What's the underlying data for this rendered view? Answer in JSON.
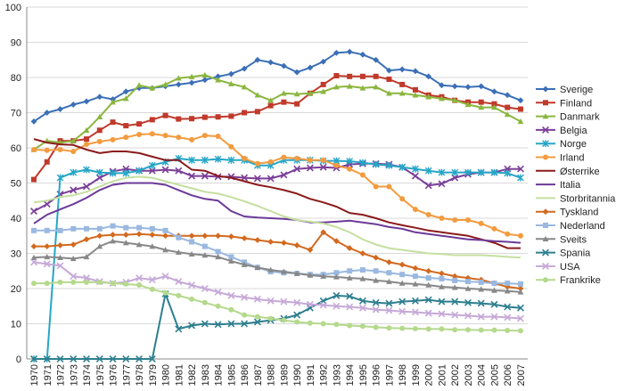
{
  "chart_data": {
    "type": "line",
    "x": [
      "1970",
      "1971",
      "1972",
      "1973",
      "1974",
      "1975",
      "1976",
      "1977",
      "1978",
      "1979",
      "1980",
      "1981",
      "1982",
      "1983",
      "1984",
      "1985",
      "1986",
      "1987",
      "1988",
      "1989",
      "1990",
      "1991",
      "1992",
      "1993",
      "1994",
      "1995",
      "1996",
      "1997",
      "1998",
      "1999",
      "2000",
      "2001",
      "2002",
      "2003",
      "2004",
      "2005",
      "2006",
      "2007"
    ],
    "ylim": [
      0,
      100
    ],
    "yticks": [
      "0",
      "10",
      "20",
      "30",
      "40",
      "50",
      "60",
      "70",
      "80",
      "90",
      "100"
    ],
    "grid": true,
    "legend_position": "right",
    "series": [
      {
        "name": "Sverige",
        "color": "#3b6fb6",
        "marker": "diamond",
        "values": [
          67.5,
          70,
          71,
          72.3,
          73.2,
          74.5,
          73.8,
          76,
          77,
          77,
          77.5,
          78,
          78.5,
          79.3,
          80.3,
          81,
          82.5,
          85,
          84.3,
          83.3,
          81.5,
          82.8,
          84.5,
          87,
          87.3,
          86.5,
          85,
          82,
          82.3,
          81.8,
          80.3,
          77.8,
          77.5,
          77.3,
          77.5,
          76,
          75,
          73.5
        ]
      },
      {
        "name": "Finland",
        "color": "#c0392b",
        "marker": "square",
        "values": [
          51,
          56,
          62,
          62,
          62.5,
          65,
          67.3,
          66.3,
          66.8,
          68,
          69.2,
          68.2,
          68.3,
          68.7,
          68.8,
          69,
          70,
          70.3,
          72,
          73,
          72.5,
          75.5,
          78,
          80.5,
          80.3,
          80.3,
          80.3,
          79.5,
          78,
          76.5,
          75,
          74.5,
          73.5,
          73,
          73,
          72.5,
          71.5,
          71
        ]
      },
      {
        "name": "Danmark",
        "color": "#8ab63e",
        "marker": "triangle",
        "values": [
          59.5,
          62,
          61.5,
          62,
          65,
          68.8,
          73,
          74,
          77.8,
          77,
          78,
          79.8,
          80.2,
          80.7,
          79.3,
          78.2,
          77.3,
          75,
          73.5,
          75.5,
          75.3,
          75.5,
          76,
          77.3,
          77.5,
          77,
          77.3,
          75.5,
          75.5,
          75,
          74.5,
          74,
          73.5,
          72.3,
          71.5,
          71.5,
          69.5,
          67.5
        ]
      },
      {
        "name": "Belgia",
        "color": "#7b3f98",
        "marker": "x",
        "values": [
          42,
          44,
          46.8,
          48,
          49,
          51.5,
          53.3,
          54,
          53.5,
          53.5,
          53.8,
          53.5,
          52,
          52,
          51.8,
          51.8,
          51.5,
          51.3,
          51.3,
          52.3,
          54,
          54.3,
          54.5,
          54.3,
          55.3,
          55.5,
          55.5,
          55.3,
          54.5,
          52,
          49.3,
          49.8,
          51.5,
          52.5,
          53,
          53,
          54,
          54
        ]
      },
      {
        "name": "Norge",
        "color": "#26a6c7",
        "marker": "star",
        "values": [
          0,
          0,
          51.5,
          53,
          53.8,
          53,
          52.8,
          52.8,
          53.5,
          55,
          56,
          57,
          56.5,
          56.5,
          56.8,
          56.5,
          56.5,
          55,
          55,
          56.5,
          56.5,
          56.5,
          56.3,
          56.3,
          56.2,
          55.8,
          55.3,
          55,
          54.5,
          54,
          53.5,
          53,
          53,
          53,
          53,
          53,
          52.8,
          51.5
        ]
      },
      {
        "name": "Irland",
        "color": "#f39b3f",
        "marker": "circle",
        "values": [
          59.5,
          59.3,
          59.5,
          59,
          61,
          61.8,
          62.3,
          63,
          63.8,
          64,
          63.5,
          63,
          62.3,
          63.5,
          63.3,
          60.3,
          57,
          55.5,
          56,
          57.3,
          57,
          56.5,
          56.5,
          55,
          54,
          52.3,
          49,
          49,
          45.5,
          42.5,
          41,
          40,
          39.5,
          39.5,
          38.5,
          37,
          35.5,
          35
        ]
      },
      {
        "name": "Østerrike",
        "color": "#8b1a1a",
        "marker": "none",
        "values": [
          62.5,
          61.5,
          61,
          60.8,
          59.5,
          58.5,
          59,
          59,
          58.5,
          57.5,
          56.5,
          56.5,
          53.8,
          53.5,
          52,
          51.5,
          50.5,
          49.5,
          48.8,
          48,
          47,
          45.5,
          44.5,
          43.3,
          41.5,
          41,
          40,
          38.8,
          38,
          37.3,
          36.5,
          36,
          35.5,
          35,
          34,
          33,
          31.5,
          31.5
        ]
      },
      {
        "name": "Italia",
        "color": "#6b3a98",
        "marker": "none",
        "values": [
          38.5,
          41,
          42.5,
          44,
          45.8,
          48,
          49.5,
          50,
          50,
          50,
          49.5,
          48,
          46.5,
          45.5,
          45,
          42,
          40.5,
          40.2,
          40,
          39.8,
          39.5,
          38.8,
          38.8,
          39,
          39.3,
          38.8,
          38.3,
          37.5,
          37,
          36,
          35.5,
          35,
          34.5,
          34,
          33.8,
          33.5,
          33.3,
          33
        ]
      },
      {
        "name": "Storbritannia",
        "color": "#c5dfa0",
        "marker": "none",
        "values": [
          44.5,
          45,
          46,
          46.5,
          47.5,
          49,
          50.5,
          51.5,
          51.8,
          51.5,
          50.5,
          49.5,
          48.5,
          47.5,
          47,
          46,
          44.8,
          43.5,
          42,
          40.5,
          39.5,
          39,
          38.5,
          37.5,
          36,
          34,
          32.5,
          31.5,
          31,
          30.5,
          30,
          29.8,
          29.5,
          29.5,
          29.5,
          29.3,
          29,
          28.8
        ]
      },
      {
        "name": "Tyskland",
        "color": "#d2691e",
        "marker": "diamond",
        "values": [
          32,
          32,
          32.3,
          32.5,
          34,
          35,
          35.3,
          35.3,
          35.5,
          35.3,
          35,
          35,
          35,
          35,
          35,
          34.8,
          34.3,
          33.8,
          33.3,
          33,
          32.3,
          31,
          36,
          33.5,
          31.5,
          30,
          28.8,
          27.5,
          26.8,
          25.8,
          25,
          24.3,
          23.5,
          23,
          22.5,
          21.5,
          20.5,
          20
        ]
      },
      {
        "name": "Nederland",
        "color": "#9ab8e0",
        "marker": "square",
        "values": [
          36.5,
          36.5,
          36.5,
          37,
          37,
          37,
          37.8,
          37.3,
          37.3,
          37,
          36.5,
          34.5,
          33.3,
          32,
          30.5,
          29,
          27.5,
          26,
          24.8,
          24.5,
          24.3,
          24,
          24,
          24.5,
          25,
          25.3,
          25,
          24.5,
          24,
          23.5,
          23,
          22.8,
          22.3,
          22,
          21.8,
          21.5,
          21.5,
          21.3
        ]
      },
      {
        "name": "Sveits",
        "color": "#888888",
        "marker": "triangle",
        "values": [
          28.8,
          29,
          28.8,
          28.5,
          29,
          32,
          33.5,
          33,
          32.5,
          32,
          31,
          30.3,
          29.8,
          29.5,
          29,
          27.8,
          26.8,
          26,
          25.3,
          24.8,
          24.3,
          23.8,
          23.5,
          23.3,
          23,
          22.8,
          22.3,
          22,
          21.5,
          21.3,
          21,
          20.5,
          20.3,
          20,
          19.8,
          19.5,
          19.3,
          19
        ]
      },
      {
        "name": "Spania",
        "color": "#2e7f8f",
        "marker": "x",
        "values": [
          0,
          0,
          0,
          0,
          0,
          0,
          0,
          0,
          0,
          0,
          18.5,
          8.5,
          9.5,
          10,
          9.8,
          10,
          10,
          10.5,
          11,
          11.5,
          12.5,
          14.5,
          16.5,
          18,
          17.8,
          16.5,
          16,
          15.8,
          16.3,
          16.5,
          16.8,
          16.3,
          16.3,
          16,
          15.8,
          15.5,
          14.8,
          14.5
        ]
      },
      {
        "name": "USA",
        "color": "#c6a9d8",
        "marker": "x",
        "values": [
          27.5,
          27,
          26.5,
          23.5,
          23,
          22,
          21.5,
          21.8,
          23,
          22.5,
          23.5,
          22,
          21,
          20,
          19,
          18,
          17.5,
          17,
          16.5,
          16.3,
          16,
          15.5,
          15.3,
          15,
          14.8,
          14.5,
          14,
          13.8,
          13.5,
          13.3,
          13,
          12.8,
          12.5,
          12.3,
          12,
          12,
          11.8,
          11.5
        ]
      },
      {
        "name": "Frankrike",
        "color": "#b5d98c",
        "marker": "circle",
        "values": [
          21.5,
          21.5,
          21.8,
          21.8,
          21.8,
          21.8,
          21.5,
          21.3,
          21,
          19.8,
          18.8,
          18,
          17,
          16,
          15,
          14,
          12.5,
          12,
          11.5,
          11,
          10.5,
          10.2,
          10,
          9.8,
          9.5,
          9.3,
          9,
          8.8,
          8.7,
          8.6,
          8.5,
          8.5,
          8.3,
          8.3,
          8.2,
          8.2,
          8.1,
          8
        ]
      }
    ]
  }
}
